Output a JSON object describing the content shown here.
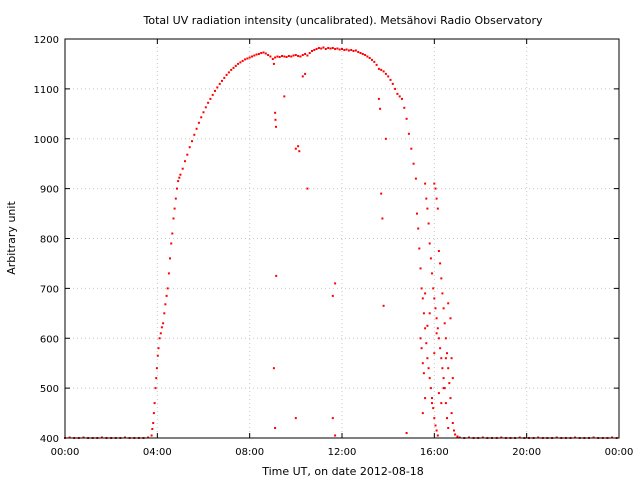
{
  "chart_data": {
    "type": "scatter",
    "title": "Total UV radiation intensity (uncalibrated). Metsähovi Radio Observatory",
    "xlabel": "Time UT, on date 2012-08-18",
    "ylabel": "Arbitrary unit",
    "xlim": [
      0,
      24
    ],
    "ylim": [
      400,
      1200
    ],
    "x_ticks": [
      0,
      4,
      8,
      12,
      16,
      20,
      24
    ],
    "x_tick_labels": [
      "00:00",
      "04:00",
      "08:00",
      "12:00",
      "16:00",
      "20:00",
      "00:00"
    ],
    "y_ticks": [
      400,
      500,
      600,
      700,
      800,
      900,
      1000,
      1100,
      1200
    ],
    "y_tick_labels": [
      "400",
      "500",
      "600",
      "700",
      "800",
      "900",
      "1000",
      "1100",
      "1200"
    ],
    "grid": true,
    "marker_color": "#ff0000",
    "series": [
      {
        "name": "",
        "points": [
          [
            0.0,
            400
          ],
          [
            0.2,
            401
          ],
          [
            0.4,
            400
          ],
          [
            0.6,
            400
          ],
          [
            0.8,
            401
          ],
          [
            1.0,
            400
          ],
          [
            1.2,
            400
          ],
          [
            1.4,
            400
          ],
          [
            1.6,
            401
          ],
          [
            1.8,
            400
          ],
          [
            2.0,
            400
          ],
          [
            2.2,
            400
          ],
          [
            2.4,
            400
          ],
          [
            2.6,
            401
          ],
          [
            2.8,
            400
          ],
          [
            3.0,
            400
          ],
          [
            3.2,
            400
          ],
          [
            3.4,
            400
          ],
          [
            3.6,
            401
          ],
          [
            3.75,
            405
          ],
          [
            3.78,
            418
          ],
          [
            3.82,
            430
          ],
          [
            3.85,
            450
          ],
          [
            3.88,
            470
          ],
          [
            3.92,
            500
          ],
          [
            3.95,
            520
          ],
          [
            3.98,
            540
          ],
          [
            4.02,
            565
          ],
          [
            4.05,
            580
          ],
          [
            4.1,
            600
          ],
          [
            4.15,
            610
          ],
          [
            4.2,
            622
          ],
          [
            4.25,
            630
          ],
          [
            4.3,
            650
          ],
          [
            4.35,
            668
          ],
          [
            4.4,
            685
          ],
          [
            4.45,
            700
          ],
          [
            4.5,
            730
          ],
          [
            4.55,
            760
          ],
          [
            4.6,
            790
          ],
          [
            4.65,
            810
          ],
          [
            4.7,
            840
          ],
          [
            4.75,
            860
          ],
          [
            4.8,
            880
          ],
          [
            4.85,
            900
          ],
          [
            4.9,
            915
          ],
          [
            4.95,
            922
          ],
          [
            5.0,
            928
          ],
          [
            5.1,
            940
          ],
          [
            5.2,
            955
          ],
          [
            5.3,
            968
          ],
          [
            5.4,
            983
          ],
          [
            5.5,
            995
          ],
          [
            5.6,
            1008
          ],
          [
            5.7,
            1020
          ],
          [
            5.8,
            1032
          ],
          [
            5.9,
            1043
          ],
          [
            6.0,
            1053
          ],
          [
            6.1,
            1063
          ],
          [
            6.2,
            1072
          ],
          [
            6.3,
            1080
          ],
          [
            6.4,
            1088
          ],
          [
            6.5,
            1096
          ],
          [
            6.6,
            1103
          ],
          [
            6.7,
            1110
          ],
          [
            6.8,
            1116
          ],
          [
            6.9,
            1122
          ],
          [
            7.0,
            1128
          ],
          [
            7.1,
            1133
          ],
          [
            7.2,
            1138
          ],
          [
            7.3,
            1142
          ],
          [
            7.4,
            1146
          ],
          [
            7.5,
            1150
          ],
          [
            7.6,
            1153
          ],
          [
            7.7,
            1156
          ],
          [
            7.8,
            1159
          ],
          [
            7.9,
            1161
          ],
          [
            8.0,
            1163
          ],
          [
            8.1,
            1165
          ],
          [
            8.2,
            1167
          ],
          [
            8.3,
            1169
          ],
          [
            8.4,
            1170
          ],
          [
            8.5,
            1172
          ],
          [
            8.6,
            1173
          ],
          [
            8.7,
            1171
          ],
          [
            8.8,
            1168
          ],
          [
            8.9,
            1165
          ],
          [
            9.0,
            1160
          ],
          [
            9.05,
            1150
          ],
          [
            9.1,
            1163
          ],
          [
            9.2,
            1165
          ],
          [
            9.3,
            1164
          ],
          [
            9.4,
            1166
          ],
          [
            9.5,
            1165
          ],
          [
            9.6,
            1164
          ],
          [
            9.7,
            1166
          ],
          [
            9.8,
            1165
          ],
          [
            9.9,
            1167
          ],
          [
            10.0,
            1168
          ],
          [
            10.1,
            1166
          ],
          [
            10.2,
            1165
          ],
          [
            10.3,
            1168
          ],
          [
            10.4,
            1170
          ],
          [
            10.5,
            1167
          ],
          [
            10.6,
            1172
          ],
          [
            10.7,
            1176
          ],
          [
            10.8,
            1178
          ],
          [
            10.9,
            1180
          ],
          [
            11.0,
            1182
          ],
          [
            11.1,
            1181
          ],
          [
            11.2,
            1183
          ],
          [
            11.3,
            1180
          ],
          [
            11.4,
            1182
          ],
          [
            11.5,
            1181
          ],
          [
            11.6,
            1182
          ],
          [
            11.7,
            1180
          ],
          [
            11.8,
            1181
          ],
          [
            11.9,
            1179
          ],
          [
            12.0,
            1180
          ],
          [
            12.1,
            1178
          ],
          [
            12.2,
            1179
          ],
          [
            12.3,
            1177
          ],
          [
            12.4,
            1178
          ],
          [
            12.5,
            1176
          ],
          [
            12.6,
            1177
          ],
          [
            12.7,
            1174
          ],
          [
            12.8,
            1172
          ],
          [
            12.9,
            1170
          ],
          [
            13.0,
            1168
          ],
          [
            13.1,
            1165
          ],
          [
            13.2,
            1162
          ],
          [
            13.3,
            1158
          ],
          [
            13.4,
            1154
          ],
          [
            13.5,
            1148
          ],
          [
            13.6,
            1140
          ],
          [
            13.7,
            1138
          ],
          [
            13.8,
            1135
          ],
          [
            13.9,
            1130
          ],
          [
            14.0,
            1125
          ],
          [
            14.1,
            1118
          ],
          [
            14.2,
            1110
          ],
          [
            14.3,
            1100
          ],
          [
            14.4,
            1090
          ],
          [
            14.5,
            1085
          ],
          [
            14.6,
            1080
          ],
          [
            14.7,
            1062
          ],
          [
            14.8,
            1040
          ],
          [
            14.9,
            1010
          ],
          [
            15.0,
            980
          ],
          [
            15.1,
            950
          ],
          [
            9.05,
            540
          ],
          [
            9.1,
            420
          ],
          [
            9.15,
            725
          ],
          [
            9.1,
            1052
          ],
          [
            9.12,
            1038
          ],
          [
            9.14,
            1024
          ],
          [
            9.5,
            1085
          ],
          [
            10.0,
            980
          ],
          [
            10.1,
            985
          ],
          [
            10.15,
            975
          ],
          [
            10.3,
            1125
          ],
          [
            10.4,
            1130
          ],
          [
            10.2,
            1165
          ],
          [
            10.5,
            900
          ],
          [
            10.0,
            440
          ],
          [
            11.6,
            440
          ],
          [
            11.7,
            405
          ],
          [
            11.6,
            685
          ],
          [
            11.7,
            710
          ],
          [
            13.6,
            1080
          ],
          [
            13.65,
            1060
          ],
          [
            13.7,
            890
          ],
          [
            13.75,
            840
          ],
          [
            13.8,
            665
          ],
          [
            13.9,
            1000
          ],
          [
            14.8,
            410
          ],
          [
            15.2,
            920
          ],
          [
            15.25,
            850
          ],
          [
            15.3,
            820
          ],
          [
            15.35,
            780
          ],
          [
            15.4,
            740
          ],
          [
            15.45,
            700
          ],
          [
            15.5,
            680
          ],
          [
            15.55,
            650
          ],
          [
            15.6,
            620
          ],
          [
            15.65,
            590
          ],
          [
            15.7,
            560
          ],
          [
            15.75,
            540
          ],
          [
            15.8,
            520
          ],
          [
            15.85,
            500
          ],
          [
            15.9,
            480
          ],
          [
            15.95,
            460
          ],
          [
            16.0,
            440
          ],
          [
            16.05,
            425
          ],
          [
            16.1,
            415
          ],
          [
            16.15,
            405
          ],
          [
            15.6,
            910
          ],
          [
            15.65,
            880
          ],
          [
            15.7,
            860
          ],
          [
            15.75,
            830
          ],
          [
            15.8,
            790
          ],
          [
            15.85,
            760
          ],
          [
            15.9,
            730
          ],
          [
            15.95,
            700
          ],
          [
            16.0,
            680
          ],
          [
            16.05,
            660
          ],
          [
            16.1,
            640
          ],
          [
            16.15,
            620
          ],
          [
            16.2,
            600
          ],
          [
            16.25,
            580
          ],
          [
            16.3,
            560
          ],
          [
            16.35,
            540
          ],
          [
            16.4,
            520
          ],
          [
            16.45,
            500
          ],
          [
            16.5,
            470
          ],
          [
            16.55,
            440
          ],
          [
            16.6,
            420
          ],
          [
            16.0,
            910
          ],
          [
            16.05,
            900
          ],
          [
            16.1,
            880
          ],
          [
            16.15,
            860
          ],
          [
            16.2,
            775
          ],
          [
            16.25,
            750
          ],
          [
            16.3,
            720
          ],
          [
            16.35,
            690
          ],
          [
            16.4,
            660
          ],
          [
            16.45,
            630
          ],
          [
            16.5,
            600
          ],
          [
            16.55,
            570
          ],
          [
            16.6,
            540
          ],
          [
            16.65,
            510
          ],
          [
            16.7,
            480
          ],
          [
            16.75,
            450
          ],
          [
            16.8,
            430
          ],
          [
            16.85,
            415
          ],
          [
            16.9,
            407
          ],
          [
            17.0,
            403
          ],
          [
            15.4,
            600
          ],
          [
            15.45,
            580
          ],
          [
            15.5,
            550
          ],
          [
            15.55,
            530
          ],
          [
            15.6,
            690
          ],
          [
            15.7,
            625
          ],
          [
            15.8,
            650
          ],
          [
            15.9,
            470
          ],
          [
            16.0,
            570
          ],
          [
            16.1,
            610
          ],
          [
            16.2,
            490
          ],
          [
            16.3,
            470
          ],
          [
            16.4,
            500
          ],
          [
            16.5,
            560
          ],
          [
            16.6,
            670
          ],
          [
            16.7,
            640
          ],
          [
            16.75,
            560
          ],
          [
            16.8,
            520
          ],
          [
            15.5,
            450
          ],
          [
            15.6,
            480
          ],
          [
            17.1,
            401
          ],
          [
            17.3,
            400
          ],
          [
            17.5,
            401
          ],
          [
            17.7,
            400
          ],
          [
            17.9,
            400
          ],
          [
            18.1,
            401
          ],
          [
            18.3,
            400
          ],
          [
            18.5,
            400
          ],
          [
            18.7,
            400
          ],
          [
            18.9,
            401
          ],
          [
            19.1,
            400
          ],
          [
            19.3,
            400
          ],
          [
            19.5,
            400
          ],
          [
            19.7,
            401
          ],
          [
            19.9,
            400
          ],
          [
            20.1,
            400
          ],
          [
            20.3,
            400
          ],
          [
            20.5,
            401
          ],
          [
            20.7,
            400
          ],
          [
            20.9,
            400
          ],
          [
            21.1,
            400
          ],
          [
            21.3,
            401
          ],
          [
            21.5,
            400
          ],
          [
            21.7,
            400
          ],
          [
            21.9,
            400
          ],
          [
            22.1,
            401
          ],
          [
            22.3,
            400
          ],
          [
            22.5,
            400
          ],
          [
            22.7,
            400
          ],
          [
            22.9,
            401
          ],
          [
            23.1,
            400
          ],
          [
            23.3,
            400
          ],
          [
            23.5,
            400
          ],
          [
            23.7,
            401
          ],
          [
            23.9,
            400
          ]
        ]
      }
    ]
  }
}
